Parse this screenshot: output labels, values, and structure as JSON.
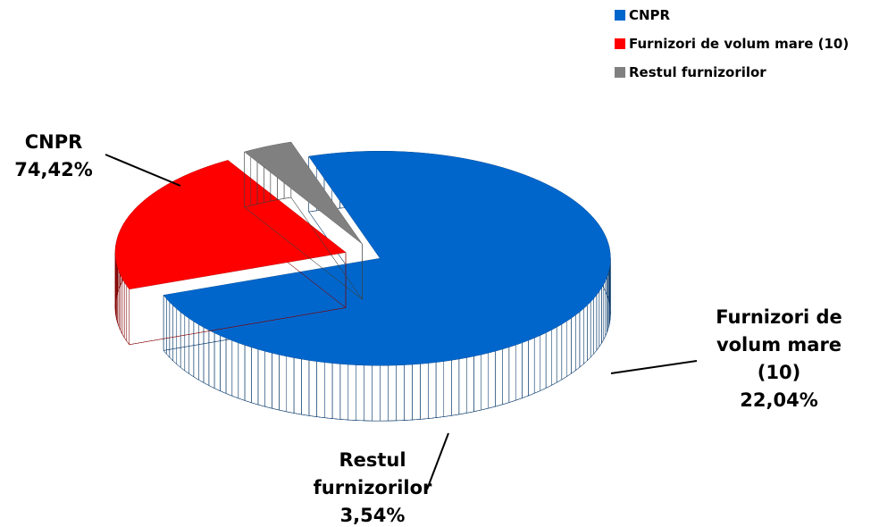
{
  "chart_data": {
    "type": "pie",
    "categories": [
      "CNPR",
      "Furnizori de volum mare (10)",
      "Restul furnizorilor"
    ],
    "values": [
      74.42,
      22.04,
      3.54
    ],
    "value_labels": [
      "74,42%",
      "22,04%",
      "3,54%"
    ],
    "colors": [
      "#0066cc",
      "#ff0000",
      "#808080"
    ],
    "legend": "top-right"
  }
}
